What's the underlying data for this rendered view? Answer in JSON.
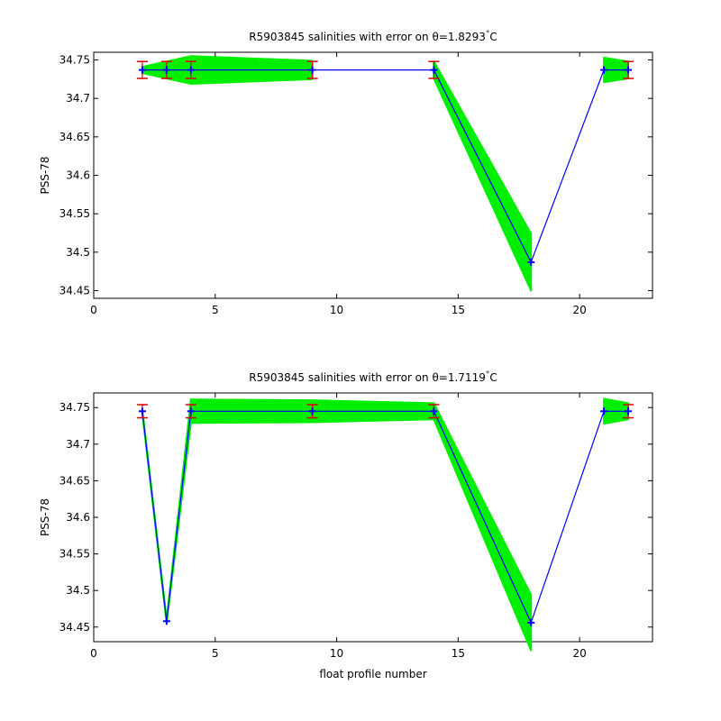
{
  "figure": {
    "colors": {
      "band": "#00ee00",
      "line": "#0000ff",
      "marker": "#0000ff",
      "errorbar": "#dd0000",
      "axes": "#000000",
      "background": "#ffffff"
    }
  },
  "chart_data": [
    {
      "type": "line",
      "title_prefix": "R5903845 salinities with error on θ=1.8293",
      "title_deg": "°",
      "title_unit": "C",
      "xlabel": "",
      "ylabel": "PSS-78",
      "xlim": [
        0,
        23
      ],
      "ylim": [
        34.44,
        34.76
      ],
      "xticks": [
        0,
        5,
        10,
        15,
        20
      ],
      "yticks": [
        34.45,
        34.5,
        34.55,
        34.6,
        34.65,
        34.7,
        34.75
      ],
      "ytick_labels": [
        "34.45",
        "34.5",
        "34.55",
        "34.6",
        "34.65",
        "34.7",
        "34.75"
      ],
      "grid": false,
      "series": [
        {
          "x": [
            2,
            3,
            4,
            9,
            14,
            18,
            21,
            22
          ],
          "y": [
            34.737,
            34.737,
            34.737,
            34.737,
            34.737,
            34.487,
            34.737,
            34.737
          ],
          "band_halfwidth": [
            0.004,
            0.011,
            0.018,
            0.012,
            0.011,
            0.037,
            0.016,
            0.011
          ],
          "errorbar": [
            0.011,
            0.011,
            0.011,
            0.011,
            0.011,
            0,
            0,
            0.011
          ],
          "band_gaps": [
            [
              9,
              14
            ],
            [
              18,
              21
            ]
          ]
        }
      ]
    },
    {
      "type": "line",
      "title_prefix": "R5903845 salinities with error on θ=1.7119",
      "title_deg": "°",
      "title_unit": "C",
      "xlabel": "float profile number",
      "ylabel": "PSS-78",
      "xlim": [
        0,
        23
      ],
      "ylim": [
        34.43,
        34.77
      ],
      "xticks": [
        0,
        5,
        10,
        15,
        20
      ],
      "yticks": [
        34.45,
        34.5,
        34.55,
        34.6,
        34.65,
        34.7,
        34.75
      ],
      "ytick_labels": [
        "34.45",
        "34.5",
        "34.55",
        "34.6",
        "34.65",
        "34.7",
        "34.75"
      ],
      "grid": false,
      "series": [
        {
          "x": [
            2,
            3,
            4,
            9,
            14,
            18,
            21,
            22
          ],
          "y": [
            34.745,
            34.458,
            34.745,
            34.745,
            34.745,
            34.456,
            34.745,
            34.745
          ],
          "band_halfwidth": [
            0.003,
            0.003,
            0.016,
            0.015,
            0.011,
            0.038,
            0.017,
            0.011
          ],
          "errorbar": [
            0.009,
            0,
            0.009,
            0.009,
            0.009,
            0,
            0,
            0.009
          ],
          "band_gaps": [
            [
              18,
              21
            ]
          ]
        }
      ]
    }
  ]
}
